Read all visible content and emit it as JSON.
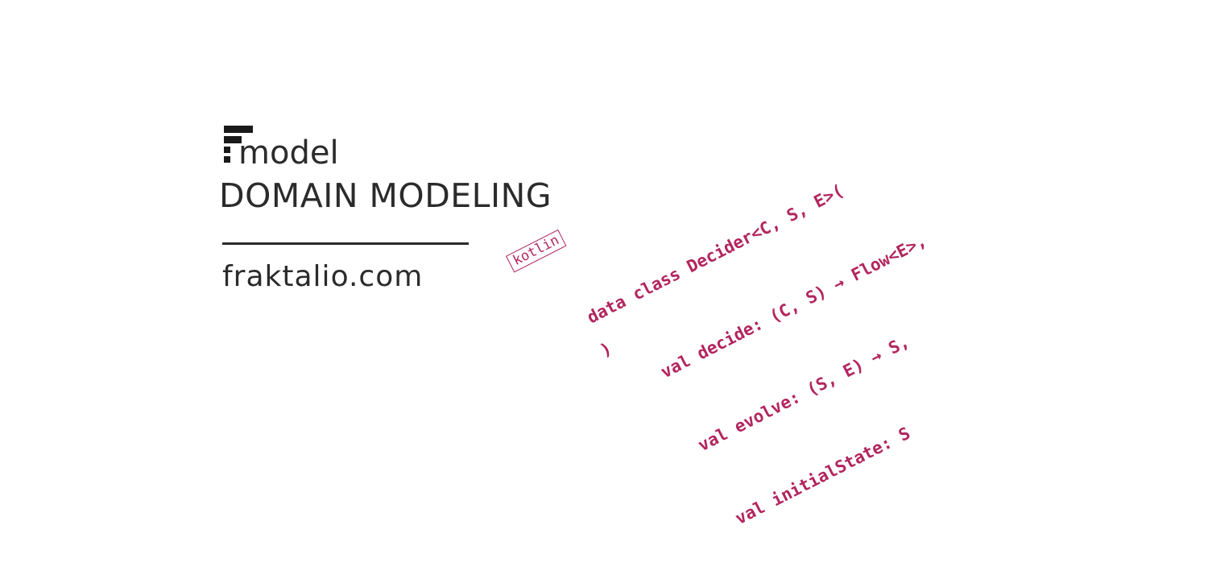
{
  "brand": {
    "logo_word": "model",
    "headline": "DOMAIN MODELING",
    "website": "fraktalio.com"
  },
  "code": {
    "language_tag": "kotlin",
    "lines": [
      "data class Decider<C, S, E>(",
      "    val decide: (C, S) → Flow<E>,",
      "    val evolve: (S, E) → S,",
      "    val initialState: S"
    ],
    "closing": ")"
  },
  "colors": {
    "text": "#2b2b2b",
    "accent": "#b2255f",
    "background": "#ffffff"
  },
  "icons": {
    "logo": "fraktalio-logo-mark-icon"
  }
}
